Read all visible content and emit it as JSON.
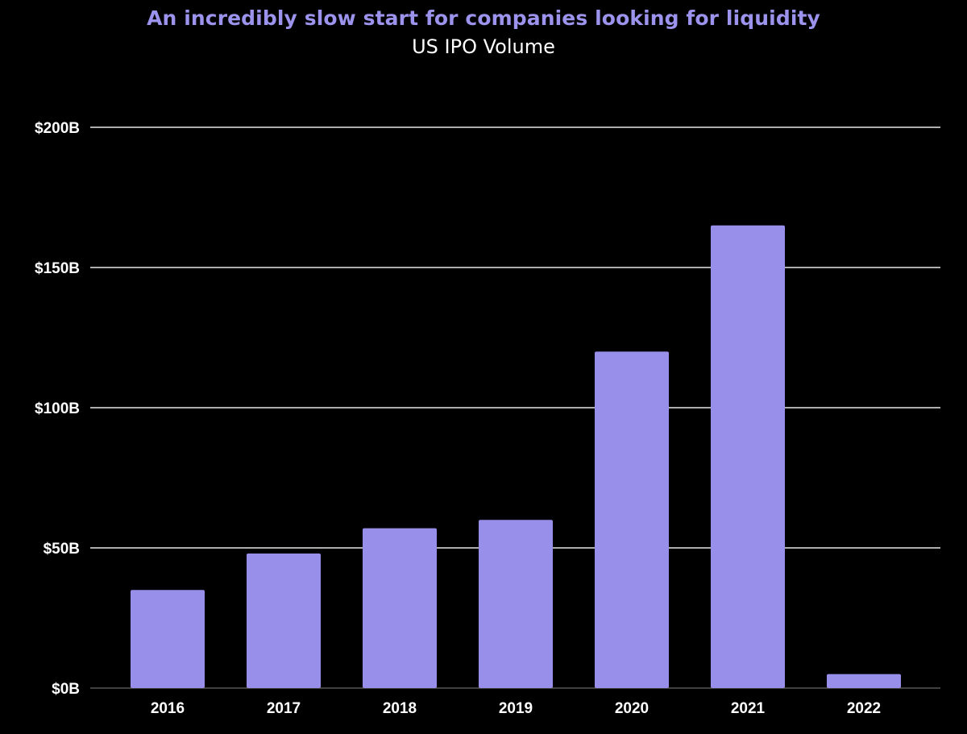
{
  "chart_data": {
    "type": "bar",
    "title": "An incredibly slow start for companies looking for liquidity",
    "subtitle": "US IPO Volume",
    "xlabel": "",
    "ylabel": "",
    "categories": [
      "2016",
      "2017",
      "2018",
      "2019",
      "2020",
      "2021",
      "2022"
    ],
    "values": [
      35,
      48,
      57,
      60,
      120,
      165,
      5
    ],
    "unit": "B",
    "ylim": [
      0,
      200
    ],
    "yticks": [
      0,
      50,
      100,
      150,
      200
    ],
    "ytick_labels": [
      "$0B",
      "$50B",
      "$100B",
      "$150B",
      "$200B"
    ],
    "grid": true,
    "legend": "none",
    "colors": {
      "bar": "#978fe9",
      "title": "#9b93ec",
      "subtitle": "#ffffff",
      "background": "#000000",
      "grid": "#e8e8e8",
      "baseline": "#555555"
    }
  }
}
